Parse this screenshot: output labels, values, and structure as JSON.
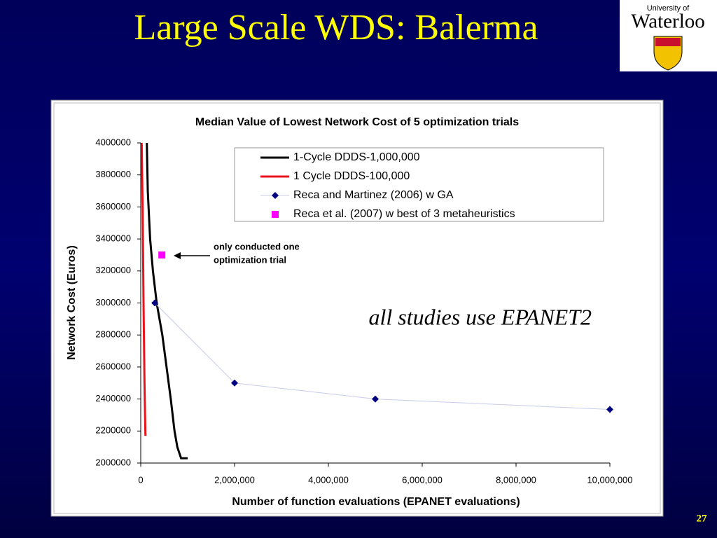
{
  "slide": {
    "title": "Large Scale WDS: Balerma",
    "page_number": "27",
    "logo": {
      "line1": "University of",
      "line2": "Waterloo"
    }
  },
  "chart_data": {
    "type": "line",
    "title": "Median Value of Lowest Network Cost of 5 optimization trials",
    "x_label": "Number of function evaluations (EPANET evaluations)",
    "y_label": "Network Cost (Euros)",
    "xlim": [
      0,
      10000000
    ],
    "xticks": [
      0,
      {
        "value": 2000000,
        "label": "2,000,000"
      },
      {
        "value": 4000000,
        "label": "4,000,000"
      },
      {
        "value": 6000000,
        "label": "6,000,000"
      },
      {
        "value": 8000000,
        "label": "8,000,000"
      },
      {
        "value": 10000000,
        "label": "10,000,000"
      }
    ],
    "ylim": [
      2000000,
      4000000
    ],
    "yticks": [
      2000000,
      2200000,
      2400000,
      2600000,
      2800000,
      3000000,
      3200000,
      3400000,
      3600000,
      3800000,
      4000000
    ],
    "legend": "upper right",
    "series": [
      {
        "name": "1-Cycle DDDS-1,000,000",
        "color": "#000000",
        "marker": "none",
        "x": [
          130000,
          150000,
          200000,
          260000,
          340000,
          460000,
          550000,
          640000,
          720000,
          780000,
          860000,
          1000000
        ],
        "values": [
          4000000,
          3700000,
          3400000,
          3200000,
          3000000,
          2800000,
          2600000,
          2400000,
          2200000,
          2100000,
          2030000,
          2030000
        ]
      },
      {
        "name": "1 Cycle DDDS-100,000",
        "color": "#e8141c",
        "marker": "none",
        "x": [
          20000,
          40000,
          60000,
          80000,
          100000
        ],
        "values": [
          4000000,
          3600000,
          3000000,
          2500000,
          2170000
        ]
      },
      {
        "name": "Reca and Martinez (2006) w GA",
        "color": "#000080",
        "line_color": "#c8cce8",
        "marker": "diamond",
        "x": [
          300000,
          2000000,
          5000000,
          10000000
        ],
        "values": [
          3000000,
          2500000,
          2400000,
          2335000
        ]
      },
      {
        "name": "Reca et al. (2007) w best of 3 metaheuristics",
        "color": "#ff00ff",
        "marker": "square",
        "x": [
          450000
        ],
        "values": [
          3300000
        ]
      }
    ],
    "annotations": [
      {
        "lines": [
          "only conducted one",
          "optimization trial"
        ]
      },
      {
        "lines": [
          "all studies use EPANET2"
        ]
      }
    ]
  }
}
